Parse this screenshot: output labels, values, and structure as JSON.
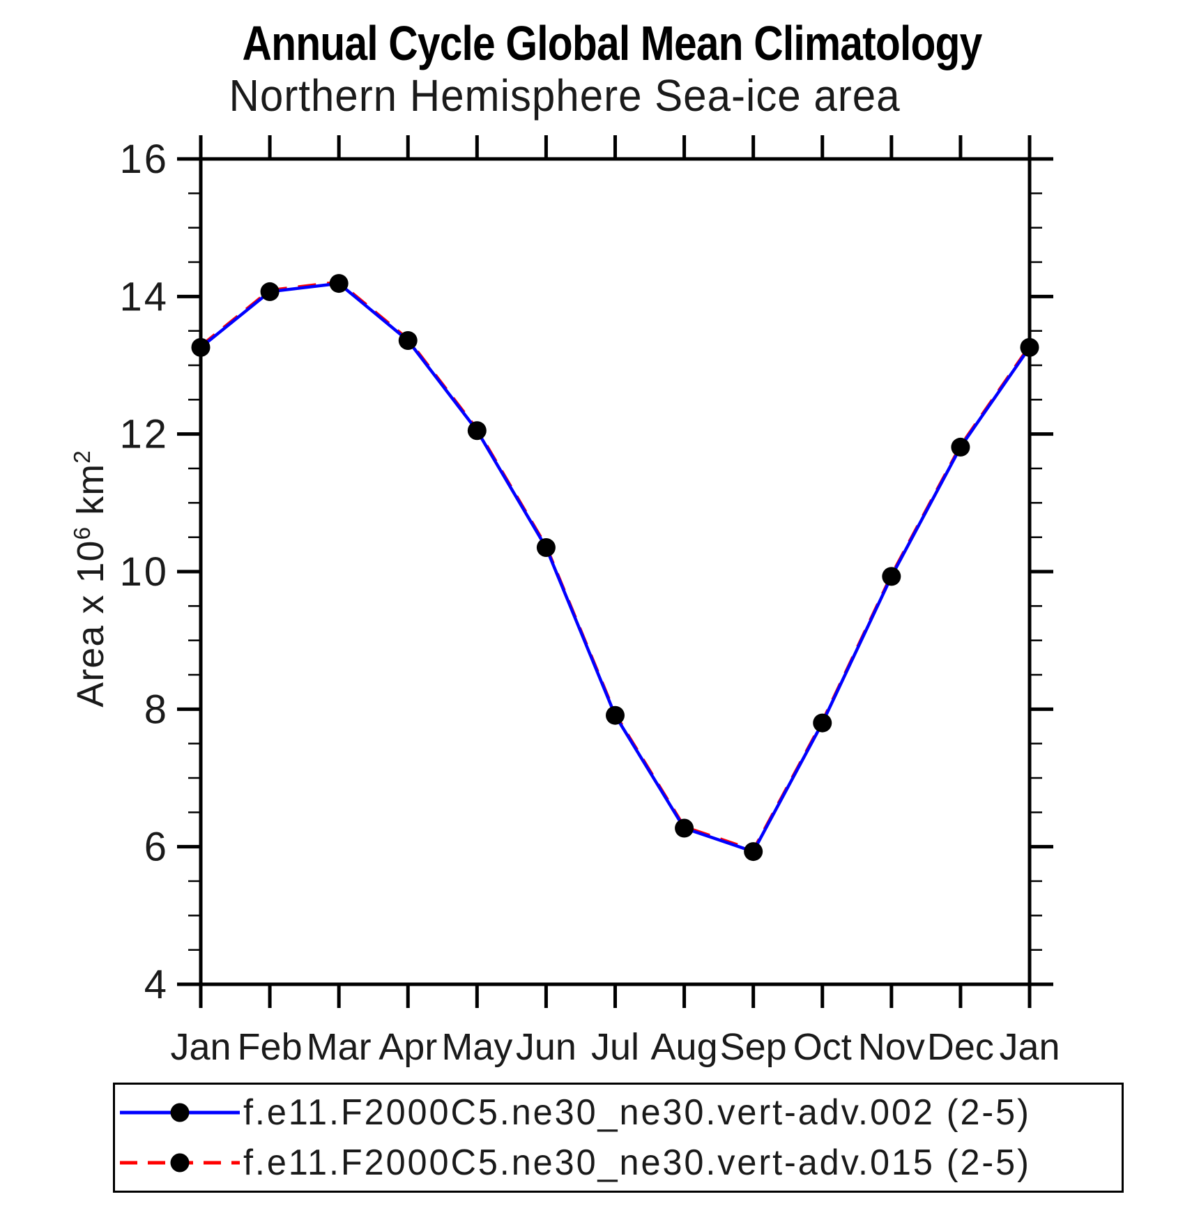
{
  "chart_data": {
    "type": "line",
    "title": "Annual Cycle Global Mean Climatology",
    "subtitle": "Northern Hemisphere Sea-ice area",
    "xlabel": "",
    "ylabel": "Area x 10^6 km^2",
    "ylabel_parts": {
      "pre": "Area x 10",
      "sup1": "6",
      "mid": " km",
      "sup2": "2"
    },
    "x_categories": [
      "Jan",
      "Feb",
      "Mar",
      "Apr",
      "May",
      "Jun",
      "Jul",
      "Aug",
      "Sep",
      "Oct",
      "Nov",
      "Dec",
      "Jan"
    ],
    "ylim": [
      4,
      16
    ],
    "yticks_major": [
      16,
      14,
      12,
      10,
      8,
      6,
      4
    ],
    "ytick_minor_step": 0.5,
    "grid": false,
    "legend_position": "bottom box",
    "series": [
      {
        "name": "f.e11.F2000C5.ne30_ne30.vert-adv.002 (2-5)",
        "color": "#0000ff",
        "line_style": "solid",
        "marker": "filled-circle",
        "marker_color": "#000000",
        "values": [
          13.26,
          14.07,
          14.19,
          13.36,
          12.05,
          10.35,
          7.91,
          6.27,
          5.93,
          7.8,
          9.93,
          11.81,
          13.26
        ]
      },
      {
        "name": "f.e11.F2000C5.ne30_ne30.vert-adv.015 (2-5)",
        "color": "#ff0000",
        "line_style": "dashed",
        "marker": "filled-circle",
        "marker_color": "#000000",
        "values": [
          13.26,
          14.07,
          14.19,
          13.36,
          12.05,
          10.35,
          7.91,
          6.27,
          5.93,
          7.8,
          9.93,
          11.81,
          13.26
        ]
      }
    ]
  }
}
